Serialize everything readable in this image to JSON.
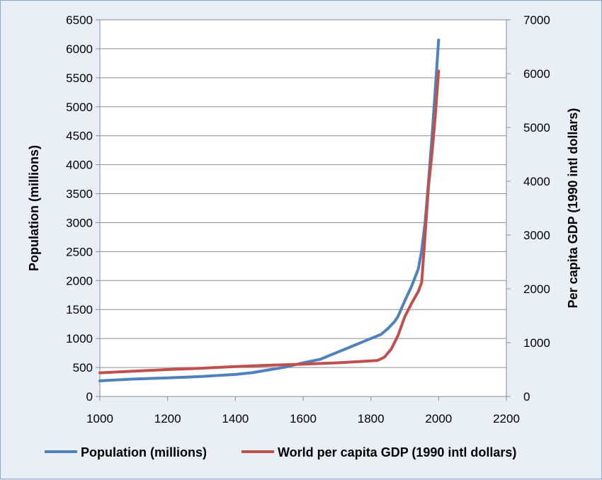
{
  "chart_data": {
    "type": "line",
    "title": "",
    "xlim": [
      1000,
      2200
    ],
    "x_ticks": [
      1000,
      1200,
      1400,
      1600,
      1800,
      2000,
      2200
    ],
    "y_left": {
      "label": "Population (millions)",
      "lim": [
        0,
        6500
      ],
      "ticks": [
        0,
        500,
        1000,
        1500,
        2000,
        2500,
        3000,
        3500,
        4000,
        4500,
        5000,
        5500,
        6000,
        6500
      ]
    },
    "y_right": {
      "label": "Per capita GDP (1990 intl dollars)",
      "lim": [
        0,
        7000
      ],
      "ticks": [
        0,
        1000,
        2000,
        3000,
        4000,
        5000,
        6000,
        7000
      ]
    },
    "grid": true,
    "legend_position": "bottom",
    "series": [
      {
        "name": "Population (millions)",
        "axis": "left",
        "color": "#4f81bd",
        "points": [
          [
            1000,
            270
          ],
          [
            1100,
            300
          ],
          [
            1200,
            320
          ],
          [
            1300,
            345
          ],
          [
            1400,
            380
          ],
          [
            1450,
            410
          ],
          [
            1500,
            460
          ],
          [
            1550,
            510
          ],
          [
            1600,
            580
          ],
          [
            1650,
            640
          ],
          [
            1700,
            760
          ],
          [
            1750,
            880
          ],
          [
            1800,
            1000
          ],
          [
            1830,
            1070
          ],
          [
            1850,
            1170
          ],
          [
            1870,
            1290
          ],
          [
            1880,
            1380
          ],
          [
            1900,
            1650
          ],
          [
            1920,
            1900
          ],
          [
            1940,
            2200
          ],
          [
            1950,
            2520
          ],
          [
            1960,
            3000
          ],
          [
            1970,
            3700
          ],
          [
            1980,
            4450
          ],
          [
            1990,
            5280
          ],
          [
            2000,
            6150
          ]
        ]
      },
      {
        "name": "World per capita GDP (1990 intl dollars)",
        "axis": "right",
        "color": "#c0504d",
        "points": [
          [
            1000,
            440
          ],
          [
            1100,
            470
          ],
          [
            1200,
            500
          ],
          [
            1300,
            525
          ],
          [
            1400,
            555
          ],
          [
            1500,
            580
          ],
          [
            1600,
            600
          ],
          [
            1700,
            625
          ],
          [
            1800,
            660
          ],
          [
            1820,
            670
          ],
          [
            1840,
            730
          ],
          [
            1860,
            880
          ],
          [
            1880,
            1130
          ],
          [
            1900,
            1480
          ],
          [
            1920,
            1730
          ],
          [
            1940,
            1950
          ],
          [
            1950,
            2120
          ],
          [
            1960,
            3000
          ],
          [
            1970,
            3900
          ],
          [
            1980,
            4500
          ],
          [
            1990,
            5200
          ],
          [
            2000,
            6050
          ]
        ]
      }
    ]
  }
}
